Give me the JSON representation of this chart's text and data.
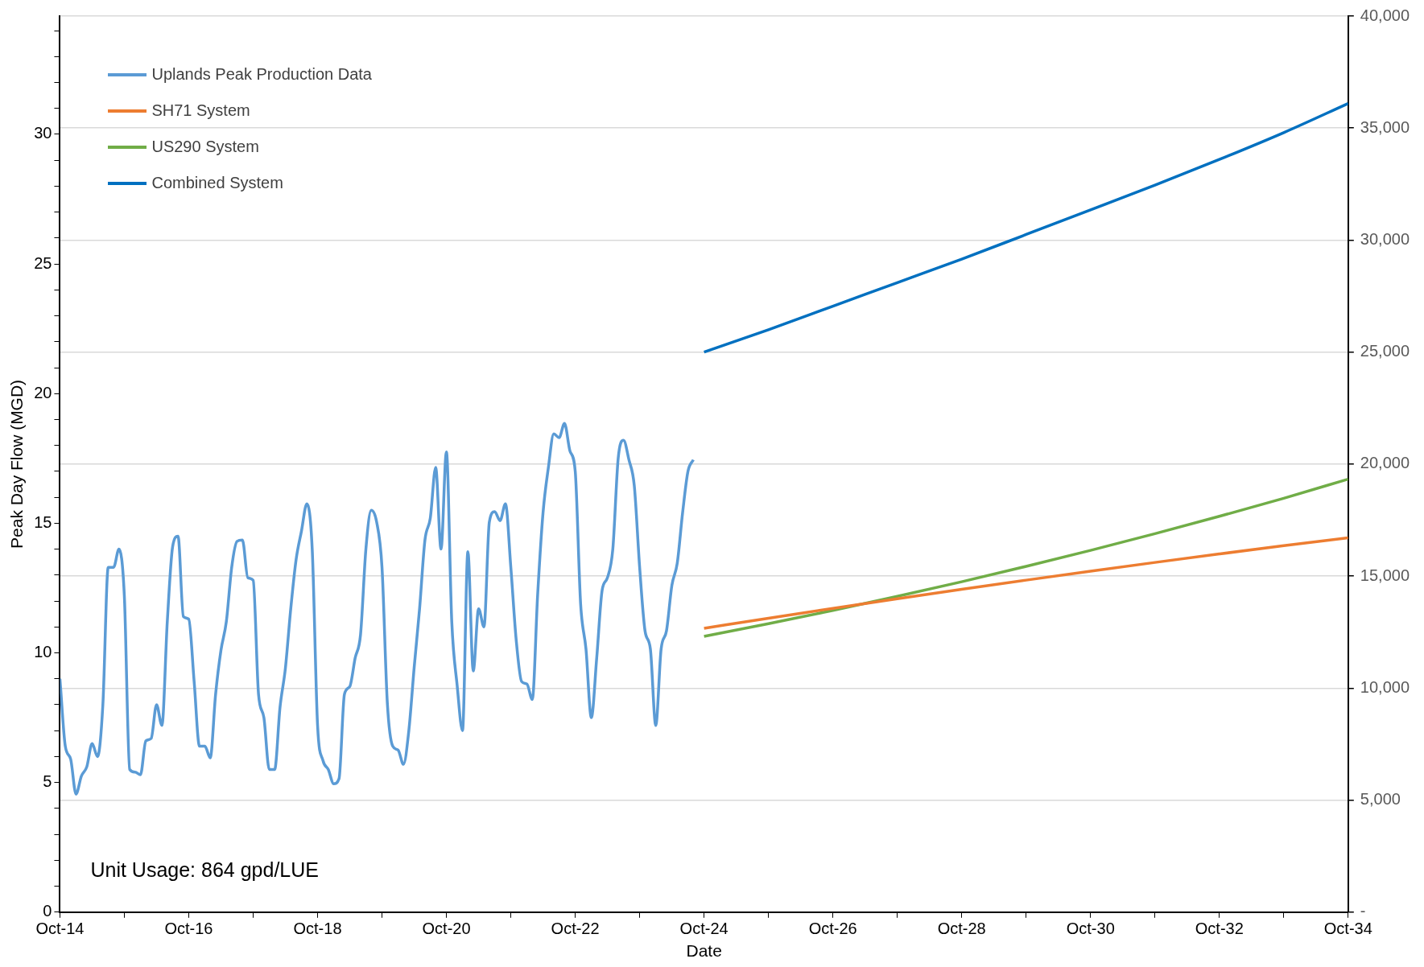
{
  "chart_data": {
    "type": "line",
    "xlabel": "Date",
    "ylabel": "Peak Day Flow (MGD)",
    "annotations": [
      "Unit Usage: 864 gpd/LUE"
    ],
    "legend": "top left",
    "grid": "y2",
    "marker": "none",
    "line_style": "solid",
    "xlim": [
      "2014-10",
      "2034-10"
    ],
    "xticks": [
      {
        "value": "2014-10",
        "label": "Oct-14"
      },
      {
        "value": "2015-10",
        "label": null
      },
      {
        "value": "2016-10",
        "label": "Oct-16"
      },
      {
        "value": "2017-10",
        "label": null
      },
      {
        "value": "2018-10",
        "label": "Oct-18"
      },
      {
        "value": "2019-10",
        "label": null
      },
      {
        "value": "2020-10",
        "label": "Oct-20"
      },
      {
        "value": "2021-10",
        "label": null
      },
      {
        "value": "2022-10",
        "label": "Oct-22"
      },
      {
        "value": "2023-10",
        "label": null
      },
      {
        "value": "2024-10",
        "label": "Oct-24"
      },
      {
        "value": "2025-10",
        "label": null
      },
      {
        "value": "2026-10",
        "label": "Oct-26"
      },
      {
        "value": "2027-10",
        "label": null
      },
      {
        "value": "2028-10",
        "label": "Oct-28"
      },
      {
        "value": "2029-10",
        "label": null
      },
      {
        "value": "2030-10",
        "label": "Oct-30"
      },
      {
        "value": "2031-10",
        "label": null
      },
      {
        "value": "2032-10",
        "label": "Oct-32"
      },
      {
        "value": "2033-10",
        "label": null
      },
      {
        "value": "2034-10",
        "label": "Oct-34"
      }
    ],
    "ylim": [
      0,
      34.56
    ],
    "yticks": [
      0,
      {
        "value": 1,
        "label": null
      },
      {
        "value": 2,
        "label": null
      },
      {
        "value": 3,
        "label": null
      },
      {
        "value": 4,
        "label": null
      },
      5,
      {
        "value": 6,
        "label": null
      },
      {
        "value": 7,
        "label": null
      },
      {
        "value": 8,
        "label": null
      },
      {
        "value": 9,
        "label": null
      },
      10,
      {
        "value": 11,
        "label": null
      },
      {
        "value": 12,
        "label": null
      },
      {
        "value": 13,
        "label": null
      },
      {
        "value": 14,
        "label": null
      },
      15,
      {
        "value": 16,
        "label": null
      },
      {
        "value": 17,
        "label": null
      },
      {
        "value": 18,
        "label": null
      },
      {
        "value": 19,
        "label": null
      },
      20,
      {
        "value": 21,
        "label": null
      },
      {
        "value": 22,
        "label": null
      },
      {
        "value": 23,
        "label": null
      },
      {
        "value": 24,
        "label": null
      },
      25,
      {
        "value": 26,
        "label": null
      },
      {
        "value": 27,
        "label": null
      },
      {
        "value": 28,
        "label": null
      },
      {
        "value": 29,
        "label": null
      },
      30,
      {
        "value": 31,
        "label": null
      },
      {
        "value": 32,
        "label": null
      },
      {
        "value": 33,
        "label": null
      },
      {
        "value": 34,
        "label": null
      }
    ],
    "y2lim": [
      0,
      40000
    ],
    "y2ticks": [
      {
        "value": 0,
        "label": "-"
      },
      {
        "value": 5000,
        "label": "5,000"
      },
      {
        "value": 10000,
        "label": "10,000"
      },
      {
        "value": 15000,
        "label": "15,000"
      },
      {
        "value": 20000,
        "label": "20,000"
      },
      {
        "value": 25000,
        "label": "25,000"
      },
      {
        "value": 30000,
        "label": "30,000"
      },
      {
        "value": 35000,
        "label": "35,000"
      },
      {
        "value": 40000,
        "label": "40,000"
      }
    ],
    "series": [
      {
        "name": "Uplands Peak Production Data",
        "color": "#5b9bd5",
        "x": [
          "2014-10",
          "2014-11",
          "2014-12",
          "2015-01",
          "2015-02",
          "2015-03",
          "2015-04",
          "2015-05",
          "2015-06",
          "2015-07",
          "2015-08",
          "2015-09",
          "2015-10",
          "2015-11",
          "2015-12",
          "2016-01",
          "2016-02",
          "2016-03",
          "2016-04",
          "2016-05",
          "2016-06",
          "2016-07",
          "2016-08",
          "2016-09",
          "2016-10",
          "2016-11",
          "2016-12",
          "2017-01",
          "2017-02",
          "2017-03",
          "2017-04",
          "2017-05",
          "2017-06",
          "2017-07",
          "2017-08",
          "2017-09",
          "2017-10",
          "2017-11",
          "2017-12",
          "2018-01",
          "2018-02",
          "2018-03",
          "2018-04",
          "2018-05",
          "2018-06",
          "2018-07",
          "2018-08",
          "2018-09",
          "2018-10",
          "2018-11",
          "2018-12",
          "2019-01",
          "2019-02",
          "2019-03",
          "2019-04",
          "2019-05",
          "2019-06",
          "2019-07",
          "2019-08",
          "2019-09",
          "2019-10",
          "2019-11",
          "2019-12",
          "2020-01",
          "2020-02",
          "2020-03",
          "2020-04",
          "2020-05",
          "2020-06",
          "2020-07",
          "2020-08",
          "2020-09",
          "2020-10",
          "2020-11",
          "2020-12",
          "2021-01",
          "2021-02",
          "2021-03",
          "2021-04",
          "2021-05",
          "2021-06",
          "2021-07",
          "2021-08",
          "2021-09",
          "2021-10",
          "2021-11",
          "2021-12",
          "2022-01",
          "2022-02",
          "2022-03",
          "2022-04",
          "2022-05",
          "2022-06",
          "2022-07",
          "2022-08",
          "2022-09",
          "2022-10",
          "2022-11",
          "2022-12",
          "2023-01",
          "2023-02",
          "2023-03",
          "2023-04",
          "2023-05",
          "2023-06",
          "2023-07",
          "2023-08",
          "2023-09",
          "2023-10",
          "2023-11",
          "2023-12",
          "2024-01",
          "2024-02",
          "2024-03",
          "2024-04",
          "2024-05",
          "2024-06",
          "2024-07",
          "2024-08"
        ],
        "values": [
          9.0,
          6.4,
          5.9,
          4.55,
          5.25,
          5.6,
          6.5,
          6.0,
          8.0,
          13.3,
          13.3,
          14.0,
          12.2,
          5.5,
          5.4,
          5.3,
          6.6,
          6.7,
          8.0,
          7.2,
          11.2,
          14.1,
          14.5,
          11.4,
          11.3,
          8.9,
          6.4,
          6.4,
          5.95,
          8.4,
          10.1,
          11.2,
          13.3,
          14.3,
          14.35,
          12.9,
          12.8,
          8.4,
          7.5,
          5.5,
          5.5,
          7.9,
          9.4,
          11.7,
          13.6,
          14.7,
          15.75,
          14.0,
          7.2,
          5.85,
          5.5,
          4.95,
          5.15,
          8.4,
          8.7,
          9.8,
          10.7,
          14.0,
          15.5,
          15.05,
          13.3,
          8.05,
          6.4,
          6.25,
          5.7,
          7.0,
          9.45,
          11.7,
          14.35,
          15.2,
          17.15,
          14.0,
          17.75,
          11.2,
          8.75,
          7.0,
          13.9,
          9.3,
          11.7,
          11.0,
          15.05,
          15.45,
          15.1,
          15.75,
          13.3,
          10.5,
          8.9,
          8.8,
          8.2,
          12.25,
          15.4,
          17.15,
          18.45,
          18.3,
          18.85,
          17.8,
          17.0,
          11.9,
          10.15,
          7.5,
          9.8,
          12.4,
          12.9,
          14.0,
          17.5,
          18.2,
          17.45,
          16.45,
          13.3,
          10.85,
          10.15,
          7.2,
          10.15,
          10.85,
          12.6,
          13.45,
          15.4,
          17.0,
          17.45
        ]
      },
      {
        "name": "SH71 System",
        "color": "#ed7d31",
        "axis": "y2",
        "x": [
          "2024-10",
          "2025-10",
          "2026-10",
          "2027-10",
          "2028-10",
          "2029-10",
          "2030-10",
          "2031-10",
          "2032-10",
          "2033-10",
          "2034-10"
        ],
        "values": [
          12670,
          13120,
          13560,
          13990,
          14410,
          14820,
          15220,
          15610,
          15990,
          16360,
          16710
        ]
      },
      {
        "name": "US290 System",
        "color": "#70ad47",
        "axis": "y2",
        "x": [
          "2024-10",
          "2025-10",
          "2026-10",
          "2027-10",
          "2028-10",
          "2029-10",
          "2030-10",
          "2031-10",
          "2032-10",
          "2033-10",
          "2034-10"
        ],
        "values": [
          12310,
          12875,
          13470,
          14095,
          14750,
          15435,
          16150,
          16895,
          17670,
          18475,
          19330
        ]
      },
      {
        "name": "Combined System",
        "color": "#0070c0",
        "axis": "y2",
        "x": [
          "2024-10",
          "2025-10",
          "2026-10",
          "2027-10",
          "2028-10",
          "2029-10",
          "2030-10",
          "2031-10",
          "2032-10",
          "2033-10",
          "2034-10"
        ],
        "values": [
          25000,
          26000,
          27050,
          28100,
          29150,
          30250,
          31350,
          32450,
          33600,
          34800,
          36100
        ]
      }
    ]
  }
}
